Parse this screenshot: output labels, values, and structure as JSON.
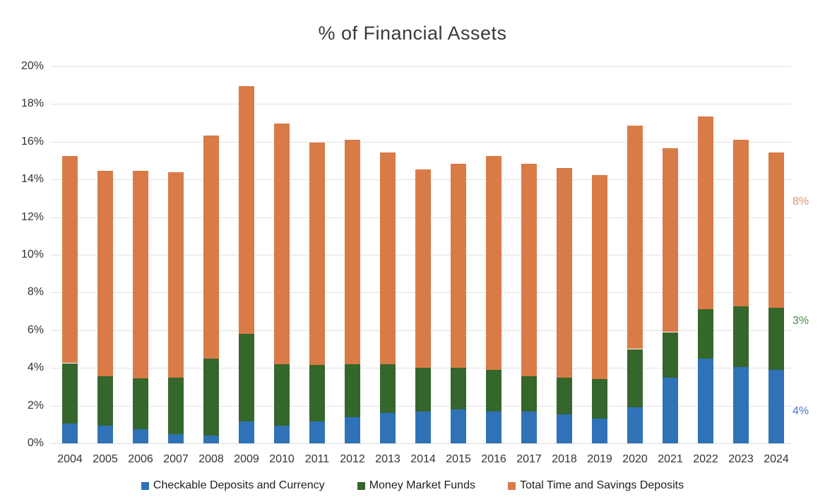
{
  "chart_data": {
    "type": "bar",
    "stacked": true,
    "title": "% of Financial Assets",
    "categories": [
      "2004",
      "2005",
      "2006",
      "2007",
      "2008",
      "2009",
      "2010",
      "2011",
      "2012",
      "2013",
      "2014",
      "2015",
      "2016",
      "2017",
      "2018",
      "2019",
      "2020",
      "2021",
      "2022",
      "2023",
      "2024"
    ],
    "series": [
      {
        "name": "Checkable Deposits and Currency",
        "color": "#2F72B8",
        "values": [
          1.05,
          0.95,
          0.75,
          0.5,
          0.4,
          1.15,
          0.95,
          1.15,
          1.4,
          1.6,
          1.7,
          1.8,
          1.7,
          1.7,
          1.55,
          1.3,
          1.9,
          3.5,
          4.5,
          4.05,
          3.9
        ]
      },
      {
        "name": "Money Market Funds",
        "color": "#35662C",
        "values": [
          3.2,
          2.6,
          2.7,
          3.0,
          4.1,
          4.65,
          3.25,
          3.0,
          2.8,
          2.6,
          2.3,
          2.2,
          2.2,
          1.85,
          1.95,
          2.1,
          3.1,
          2.4,
          2.6,
          3.2,
          3.3
        ]
      },
      {
        "name": "Total Time and Savings Deposits",
        "color": "#D97B47",
        "values": [
          11.0,
          10.9,
          11.0,
          10.9,
          11.85,
          13.15,
          12.75,
          11.8,
          11.9,
          11.25,
          10.55,
          10.85,
          11.35,
          11.3,
          11.1,
          10.85,
          11.85,
          9.75,
          10.25,
          8.85,
          8.25
        ]
      }
    ],
    "ylim": [
      0,
      20
    ],
    "ytick_step": 2,
    "ytick_labels": [
      "0%",
      "2%",
      "4%",
      "6%",
      "8%",
      "10%",
      "12%",
      "14%",
      "16%",
      "18%",
      "20%"
    ],
    "grid": true,
    "legend_position": "bottom",
    "end_labels": [
      {
        "text": "8%",
        "series": "Total Time and Savings Deposits",
        "color": "#E78D70",
        "anchor_value": 12.8
      },
      {
        "text": "3%",
        "series": "Money Market Funds",
        "color": "#4B8746",
        "anchor_value": 6.5
      },
      {
        "text": "4%",
        "series": "Checkable Deposits and Currency",
        "color": "#4678C8",
        "anchor_value": 1.7
      }
    ]
  }
}
